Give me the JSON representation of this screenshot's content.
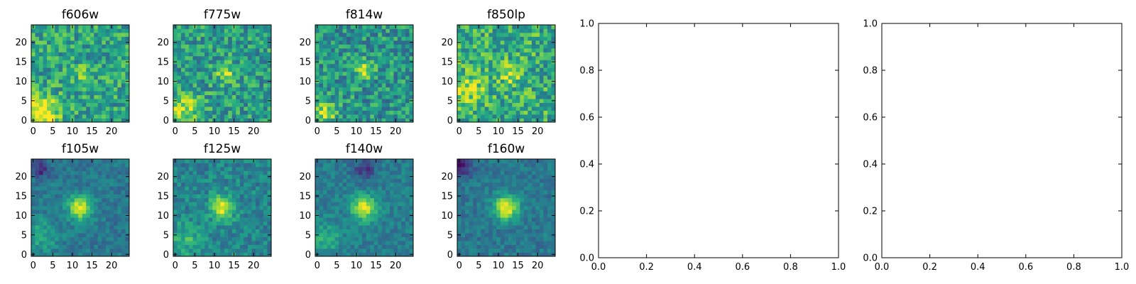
{
  "chart_data": [
    {
      "type": "heatmap",
      "title": "f606w",
      "xticks": [
        "0",
        "5",
        "10",
        "15",
        "20"
      ],
      "yticks": [
        "0",
        "5",
        "10",
        "15",
        "20"
      ],
      "xlim": [
        -0.5,
        24.5
      ],
      "ylim": [
        -0.5,
        24.5
      ],
      "grid_size": 25,
      "colormap": "viridis",
      "features": [
        {
          "x": 2,
          "y": 2,
          "amplitude": 0.55,
          "sigma": 3.0
        },
        {
          "x": 13,
          "y": 12,
          "amplitude": 0.22,
          "sigma": 1.6
        }
      ],
      "background": 0.58,
      "noise": 0.22,
      "seed": 11
    },
    {
      "type": "heatmap",
      "title": "f775w",
      "xticks": [
        "0",
        "5",
        "10",
        "15",
        "20"
      ],
      "yticks": [
        "0",
        "5",
        "10",
        "15",
        "20"
      ],
      "xlim": [
        -0.5,
        24.5
      ],
      "ylim": [
        -0.5,
        24.5
      ],
      "grid_size": 25,
      "colormap": "viridis",
      "features": [
        {
          "x": 2,
          "y": 3,
          "amplitude": 0.35,
          "sigma": 3.0
        },
        {
          "x": 13,
          "y": 12,
          "amplitude": 0.32,
          "sigma": 1.8
        }
      ],
      "background": 0.55,
      "noise": 0.22,
      "seed": 23
    },
    {
      "type": "heatmap",
      "title": "f814w",
      "xticks": [
        "0",
        "5",
        "10",
        "15",
        "20"
      ],
      "yticks": [
        "0",
        "5",
        "10",
        "15",
        "20"
      ],
      "xlim": [
        -0.5,
        24.5
      ],
      "ylim": [
        -0.5,
        24.5
      ],
      "grid_size": 25,
      "colormap": "viridis",
      "features": [
        {
          "x": 2,
          "y": 2,
          "amplitude": 0.3,
          "sigma": 2.5
        },
        {
          "x": 12,
          "y": 13,
          "amplitude": 0.4,
          "sigma": 1.6
        }
      ],
      "background": 0.52,
      "noise": 0.22,
      "seed": 37
    },
    {
      "type": "heatmap",
      "title": "f850lp",
      "xticks": [
        "0",
        "5",
        "10",
        "15",
        "20"
      ],
      "yticks": [
        "0",
        "5",
        "10",
        "15",
        "20"
      ],
      "xlim": [
        -0.5,
        24.5
      ],
      "ylim": [
        -0.5,
        24.5
      ],
      "grid_size": 25,
      "colormap": "viridis",
      "features": [
        {
          "x": 2,
          "y": 8,
          "amplitude": 0.25,
          "sigma": 3.0
        },
        {
          "x": 13,
          "y": 12,
          "amplitude": 0.3,
          "sigma": 1.8
        }
      ],
      "background": 0.62,
      "noise": 0.24,
      "seed": 53
    },
    {
      "type": "heatmap",
      "title": "f105w",
      "xticks": [
        "0",
        "5",
        "10",
        "15",
        "20"
      ],
      "yticks": [
        "0",
        "5",
        "10",
        "15",
        "20"
      ],
      "xlim": [
        -0.5,
        24.5
      ],
      "ylim": [
        -0.5,
        24.5
      ],
      "grid_size": 25,
      "colormap": "viridis",
      "features": [
        {
          "x": 12,
          "y": 12,
          "amplitude": 0.55,
          "sigma": 2.2
        },
        {
          "x": 2,
          "y": 5,
          "amplitude": 0.2,
          "sigma": 3.0
        },
        {
          "x": 2,
          "y": 22,
          "amplitude": -0.3,
          "sigma": 1.6
        }
      ],
      "background": 0.4,
      "noise": 0.1,
      "seed": 71
    },
    {
      "type": "heatmap",
      "title": "f125w",
      "xticks": [
        "0",
        "5",
        "10",
        "15",
        "20"
      ],
      "yticks": [
        "0",
        "5",
        "10",
        "15",
        "20"
      ],
      "xlim": [
        -0.5,
        24.5
      ],
      "ylim": [
        -0.5,
        24.5
      ],
      "grid_size": 25,
      "colormap": "viridis",
      "features": [
        {
          "x": 12,
          "y": 12,
          "amplitude": 0.5,
          "sigma": 2.2
        },
        {
          "x": 3,
          "y": 4,
          "amplitude": 0.2,
          "sigma": 3.0
        }
      ],
      "background": 0.45,
      "noise": 0.14,
      "seed": 89
    },
    {
      "type": "heatmap",
      "title": "f140w",
      "xticks": [
        "0",
        "5",
        "10",
        "15",
        "20"
      ],
      "yticks": [
        "0",
        "5",
        "10",
        "15",
        "20"
      ],
      "xlim": [
        -0.5,
        24.5
      ],
      "ylim": [
        -0.5,
        24.5
      ],
      "grid_size": 25,
      "colormap": "viridis",
      "features": [
        {
          "x": 12,
          "y": 12,
          "amplitude": 0.55,
          "sigma": 2.2
        },
        {
          "x": 2,
          "y": 4,
          "amplitude": 0.2,
          "sigma": 3.0
        },
        {
          "x": 12,
          "y": 22,
          "amplitude": -0.25,
          "sigma": 2.0
        }
      ],
      "background": 0.42,
      "noise": 0.1,
      "seed": 97
    },
    {
      "type": "heatmap",
      "title": "f160w",
      "xticks": [
        "0",
        "5",
        "10",
        "15",
        "20"
      ],
      "yticks": [
        "0",
        "5",
        "10",
        "15",
        "20"
      ],
      "xlim": [
        -0.5,
        24.5
      ],
      "ylim": [
        -0.5,
        24.5
      ],
      "grid_size": 25,
      "colormap": "viridis",
      "features": [
        {
          "x": 12,
          "y": 12,
          "amplitude": 0.6,
          "sigma": 2.2
        },
        {
          "x": 1,
          "y": 23,
          "amplitude": -0.35,
          "sigma": 1.8
        }
      ],
      "background": 0.4,
      "noise": 0.1,
      "seed": 113
    },
    {
      "type": "line",
      "title": "",
      "series": [],
      "xlim": [
        0.0,
        1.0
      ],
      "ylim": [
        0.0,
        1.0
      ],
      "xticks": [
        "0.0",
        "0.2",
        "0.4",
        "0.6",
        "0.8",
        "1.0"
      ],
      "yticks": [
        "0.0",
        "0.2",
        "0.4",
        "0.6",
        "0.8",
        "1.0"
      ]
    },
    {
      "type": "line",
      "title": "",
      "series": [],
      "xlim": [
        0.0,
        1.0
      ],
      "ylim": [
        0.0,
        1.0
      ],
      "xticks": [
        "0.0",
        "0.2",
        "0.4",
        "0.6",
        "0.8",
        "1.0"
      ],
      "yticks": [
        "0.0",
        "0.2",
        "0.4",
        "0.6",
        "0.8",
        "1.0"
      ]
    }
  ]
}
